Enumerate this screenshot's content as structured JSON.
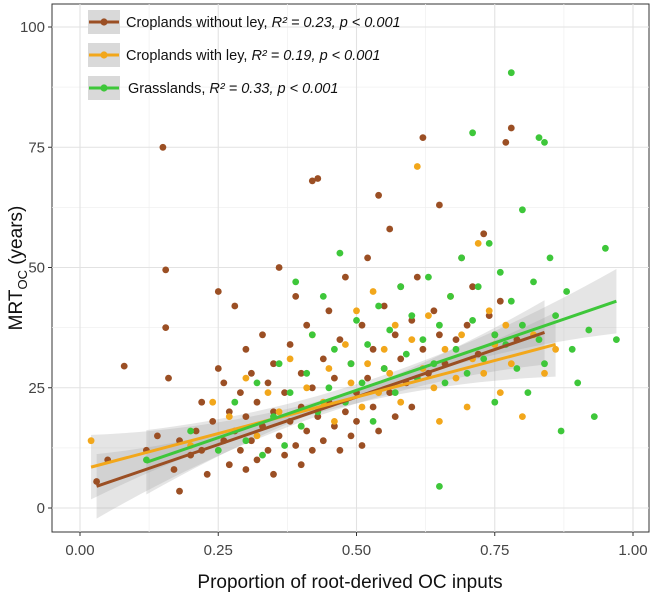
{
  "chart_data": {
    "type": "scatter",
    "title": "",
    "xlabel": "Proportion of root-derived OC inputs",
    "ylabel": "MRT",
    "ylabel_sub": "OC",
    "ylabel_suffix": " (years)",
    "xlim": [
      0.0,
      1.0
    ],
    "ylim": [
      0,
      100
    ],
    "xticks": [
      0.0,
      0.25,
      0.5,
      0.75,
      1.0
    ],
    "xtick_labels": [
      "0.00",
      "0.25",
      "0.50",
      "0.75",
      "1.00"
    ],
    "yticks": [
      0,
      25,
      50,
      75,
      100
    ],
    "ytick_labels": [
      "0",
      "25",
      "50",
      "75",
      "100"
    ],
    "grid": true,
    "legend_position": "top-left",
    "series": [
      {
        "name": "Croplands without ley",
        "label_name": "Croplands without ley, ",
        "label_r2": "R² = 0.23, ",
        "label_p": "p < 0.001",
        "color": "#9B4F24",
        "fit": {
          "x": [
            0.03,
            0.84
          ],
          "y": [
            4.5,
            36.5
          ]
        },
        "points": [
          [
            0.03,
            5.5
          ],
          [
            0.05,
            10
          ],
          [
            0.08,
            29.5
          ],
          [
            0.12,
            12
          ],
          [
            0.14,
            15
          ],
          [
            0.15,
            75
          ],
          [
            0.155,
            49.5
          ],
          [
            0.155,
            37.5
          ],
          [
            0.16,
            27
          ],
          [
            0.17,
            8
          ],
          [
            0.18,
            14
          ],
          [
            0.18,
            3.5
          ],
          [
            0.2,
            11
          ],
          [
            0.21,
            16
          ],
          [
            0.22,
            22
          ],
          [
            0.22,
            12
          ],
          [
            0.23,
            7
          ],
          [
            0.24,
            18
          ],
          [
            0.25,
            45
          ],
          [
            0.25,
            29
          ],
          [
            0.26,
            14
          ],
          [
            0.26,
            26
          ],
          [
            0.27,
            20
          ],
          [
            0.27,
            9
          ],
          [
            0.28,
            42
          ],
          [
            0.28,
            16
          ],
          [
            0.29,
            12
          ],
          [
            0.29,
            24
          ],
          [
            0.3,
            33
          ],
          [
            0.3,
            19
          ],
          [
            0.3,
            8
          ],
          [
            0.31,
            14
          ],
          [
            0.31,
            28
          ],
          [
            0.32,
            10
          ],
          [
            0.32,
            22
          ],
          [
            0.33,
            36
          ],
          [
            0.33,
            17
          ],
          [
            0.34,
            12
          ],
          [
            0.34,
            26
          ],
          [
            0.35,
            7
          ],
          [
            0.35,
            20
          ],
          [
            0.35,
            30
          ],
          [
            0.36,
            15
          ],
          [
            0.36,
            50
          ],
          [
            0.37,
            11
          ],
          [
            0.37,
            24
          ],
          [
            0.38,
            18
          ],
          [
            0.38,
            34
          ],
          [
            0.39,
            13
          ],
          [
            0.39,
            44
          ],
          [
            0.4,
            9
          ],
          [
            0.4,
            21
          ],
          [
            0.4,
            28
          ],
          [
            0.41,
            16
          ],
          [
            0.41,
            38
          ],
          [
            0.42,
            12
          ],
          [
            0.42,
            68
          ],
          [
            0.42,
            25
          ],
          [
            0.43,
            68.5
          ],
          [
            0.43,
            19
          ],
          [
            0.44,
            31
          ],
          [
            0.44,
            14
          ],
          [
            0.45,
            22
          ],
          [
            0.45,
            41
          ],
          [
            0.46,
            17
          ],
          [
            0.46,
            27
          ],
          [
            0.47,
            12
          ],
          [
            0.47,
            35
          ],
          [
            0.48,
            20
          ],
          [
            0.48,
            48
          ],
          [
            0.49,
            15
          ],
          [
            0.49,
            30
          ],
          [
            0.5,
            24
          ],
          [
            0.5,
            18
          ],
          [
            0.51,
            38
          ],
          [
            0.51,
            13
          ],
          [
            0.52,
            27
          ],
          [
            0.52,
            52
          ],
          [
            0.53,
            21
          ],
          [
            0.53,
            33
          ],
          [
            0.54,
            16
          ],
          [
            0.54,
            65
          ],
          [
            0.55,
            29
          ],
          [
            0.55,
            42
          ],
          [
            0.56,
            24
          ],
          [
            0.56,
            58
          ],
          [
            0.57,
            19
          ],
          [
            0.57,
            36
          ],
          [
            0.58,
            31
          ],
          [
            0.58,
            46
          ],
          [
            0.59,
            26
          ],
          [
            0.6,
            39
          ],
          [
            0.6,
            21
          ],
          [
            0.61,
            48
          ],
          [
            0.62,
            77
          ],
          [
            0.62,
            33
          ],
          [
            0.63,
            28
          ],
          [
            0.64,
            41
          ],
          [
            0.65,
            36
          ],
          [
            0.65,
            63
          ],
          [
            0.66,
            30
          ],
          [
            0.67,
            44
          ],
          [
            0.68,
            35
          ],
          [
            0.69,
            52
          ],
          [
            0.7,
            38
          ],
          [
            0.71,
            46
          ],
          [
            0.72,
            32
          ],
          [
            0.73,
            57
          ],
          [
            0.74,
            40
          ],
          [
            0.75,
            36
          ],
          [
            0.76,
            43
          ],
          [
            0.77,
            76
          ],
          [
            0.78,
            79
          ],
          [
            0.79,
            35
          ]
        ]
      },
      {
        "name": "Croplands with ley",
        "label_name": "Croplands with ley, ",
        "label_r2": "R² = 0.19, ",
        "label_p": "p < 0.001",
        "color": "#F2A71B",
        "fit": {
          "x": [
            0.02,
            0.86
          ],
          "y": [
            8.5,
            34
          ]
        },
        "points": [
          [
            0.02,
            14
          ],
          [
            0.2,
            13
          ],
          [
            0.24,
            22
          ],
          [
            0.27,
            19
          ],
          [
            0.3,
            27
          ],
          [
            0.32,
            15
          ],
          [
            0.34,
            24
          ],
          [
            0.36,
            20
          ],
          [
            0.38,
            31
          ],
          [
            0.4,
            17
          ],
          [
            0.41,
            25
          ],
          [
            0.42,
            36
          ],
          [
            0.44,
            22
          ],
          [
            0.45,
            29
          ],
          [
            0.46,
            18
          ],
          [
            0.48,
            34
          ],
          [
            0.49,
            26
          ],
          [
            0.5,
            41
          ],
          [
            0.51,
            21
          ],
          [
            0.52,
            30
          ],
          [
            0.53,
            45
          ],
          [
            0.54,
            24
          ],
          [
            0.55,
            33
          ],
          [
            0.56,
            28
          ],
          [
            0.57,
            38
          ],
          [
            0.58,
            22
          ],
          [
            0.6,
            35
          ],
          [
            0.61,
            71
          ],
          [
            0.62,
            29
          ],
          [
            0.63,
            40
          ],
          [
            0.64,
            25
          ],
          [
            0.65,
            18
          ],
          [
            0.66,
            33
          ],
          [
            0.67,
            44
          ],
          [
            0.68,
            27
          ],
          [
            0.69,
            36
          ],
          [
            0.7,
            21
          ],
          [
            0.71,
            31
          ],
          [
            0.72,
            55
          ],
          [
            0.73,
            28
          ],
          [
            0.74,
            41
          ],
          [
            0.75,
            34
          ],
          [
            0.76,
            24
          ],
          [
            0.77,
            38
          ],
          [
            0.78,
            30
          ],
          [
            0.8,
            19
          ],
          [
            0.82,
            36
          ],
          [
            0.84,
            28
          ],
          [
            0.86,
            33
          ]
        ]
      },
      {
        "name": "Grasslands",
        "label_name": "Grasslands, ",
        "label_r2": "R² = 0.33, ",
        "label_p": "p < 0.001",
        "color": "#3EC73A",
        "fit": {
          "x": [
            0.12,
            0.97
          ],
          "y": [
            9.5,
            43
          ]
        },
        "points": [
          [
            0.12,
            10
          ],
          [
            0.2,
            16
          ],
          [
            0.25,
            12
          ],
          [
            0.28,
            22
          ],
          [
            0.3,
            14
          ],
          [
            0.32,
            26
          ],
          [
            0.33,
            11
          ],
          [
            0.35,
            19
          ],
          [
            0.36,
            30
          ],
          [
            0.37,
            13
          ],
          [
            0.38,
            24
          ],
          [
            0.39,
            47
          ],
          [
            0.4,
            17
          ],
          [
            0.41,
            28
          ],
          [
            0.42,
            36
          ],
          [
            0.43,
            20
          ],
          [
            0.44,
            44
          ],
          [
            0.45,
            25
          ],
          [
            0.46,
            33
          ],
          [
            0.47,
            53
          ],
          [
            0.48,
            22
          ],
          [
            0.49,
            30
          ],
          [
            0.5,
            39
          ],
          [
            0.51,
            26
          ],
          [
            0.52,
            34
          ],
          [
            0.53,
            18
          ],
          [
            0.54,
            42
          ],
          [
            0.55,
            29
          ],
          [
            0.56,
            37
          ],
          [
            0.57,
            24
          ],
          [
            0.58,
            46
          ],
          [
            0.59,
            32
          ],
          [
            0.6,
            40
          ],
          [
            0.61,
            27
          ],
          [
            0.62,
            35
          ],
          [
            0.63,
            48
          ],
          [
            0.64,
            30
          ],
          [
            0.65,
            4.5
          ],
          [
            0.65,
            38
          ],
          [
            0.66,
            26
          ],
          [
            0.67,
            44
          ],
          [
            0.68,
            33
          ],
          [
            0.69,
            52
          ],
          [
            0.7,
            28
          ],
          [
            0.71,
            78
          ],
          [
            0.71,
            39
          ],
          [
            0.72,
            46
          ],
          [
            0.73,
            31
          ],
          [
            0.74,
            55
          ],
          [
            0.75,
            36
          ],
          [
            0.75,
            22
          ],
          [
            0.76,
            49
          ],
          [
            0.77,
            34
          ],
          [
            0.78,
            90.5
          ],
          [
            0.78,
            43
          ],
          [
            0.79,
            29
          ],
          [
            0.8,
            62
          ],
          [
            0.8,
            38
          ],
          [
            0.81,
            24
          ],
          [
            0.82,
            47
          ],
          [
            0.83,
            35
          ],
          [
            0.83,
            77
          ],
          [
            0.84,
            76
          ],
          [
            0.84,
            30
          ],
          [
            0.85,
            52
          ],
          [
            0.86,
            40
          ],
          [
            0.87,
            16
          ],
          [
            0.88,
            45
          ],
          [
            0.89,
            33
          ],
          [
            0.9,
            26
          ],
          [
            0.92,
            37
          ],
          [
            0.93,
            19
          ],
          [
            0.95,
            54
          ],
          [
            0.97,
            35
          ]
        ]
      }
    ]
  }
}
